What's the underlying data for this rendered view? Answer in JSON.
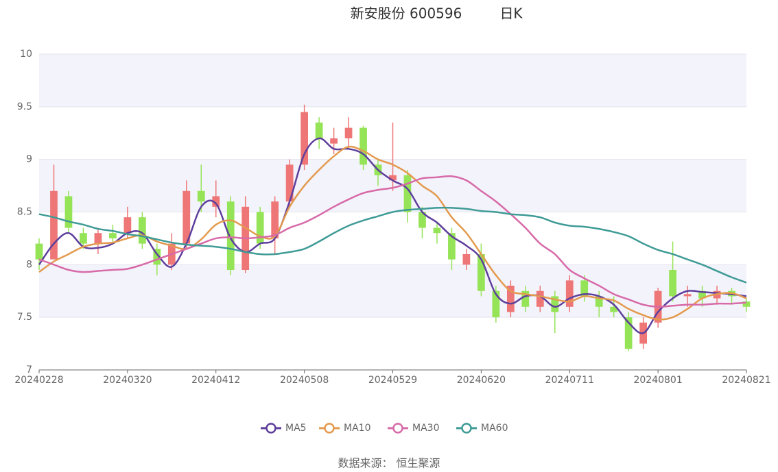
{
  "chart_data": {
    "type": "candlestick",
    "title": "新安股份 600596",
    "subtitle": "日K",
    "source": "数据来源： 恒生聚源",
    "categories": [
      "20240228",
      null,
      null,
      null,
      null,
      null,
      "20240320",
      null,
      null,
      null,
      null,
      null,
      "20240412",
      null,
      null,
      null,
      null,
      null,
      "20240508",
      null,
      null,
      null,
      null,
      null,
      "20240529",
      null,
      null,
      null,
      null,
      null,
      "20240620",
      null,
      null,
      null,
      null,
      null,
      "20240711",
      null,
      null,
      null,
      null,
      null,
      "20240801",
      null,
      null,
      null,
      null,
      null,
      "20240821"
    ],
    "ohlc": [
      [
        8.2,
        8.05,
        7.95,
        8.25
      ],
      [
        8.05,
        8.7,
        8.05,
        8.95
      ],
      [
        8.65,
        8.35,
        8.3,
        8.7
      ],
      [
        8.3,
        8.2,
        8.15,
        8.35
      ],
      [
        8.2,
        8.3,
        8.1,
        8.35
      ],
      [
        8.3,
        8.25,
        8.2,
        8.38
      ],
      [
        8.3,
        8.45,
        8.25,
        8.55
      ],
      [
        8.45,
        8.2,
        8.15,
        8.5
      ],
      [
        8.15,
        8.0,
        7.9,
        8.2
      ],
      [
        8.0,
        8.2,
        7.95,
        8.3
      ],
      [
        8.2,
        8.7,
        8.15,
        8.8
      ],
      [
        8.7,
        8.6,
        8.5,
        8.95
      ],
      [
        8.55,
        8.65,
        8.45,
        8.8
      ],
      [
        8.6,
        7.95,
        7.9,
        8.65
      ],
      [
        7.95,
        8.55,
        7.92,
        8.65
      ],
      [
        8.5,
        8.2,
        8.15,
        8.55
      ],
      [
        8.25,
        8.6,
        8.1,
        8.65
      ],
      [
        8.6,
        8.95,
        8.55,
        9.0
      ],
      [
        8.95,
        9.45,
        8.9,
        9.52
      ],
      [
        9.35,
        9.2,
        9.1,
        9.4
      ],
      [
        9.15,
        9.2,
        9.05,
        9.3
      ],
      [
        9.2,
        9.3,
        9.1,
        9.4
      ],
      [
        9.3,
        8.95,
        8.9,
        9.32
      ],
      [
        8.95,
        8.85,
        8.75,
        9.0
      ],
      [
        8.8,
        8.85,
        8.7,
        9.35
      ],
      [
        8.85,
        8.5,
        8.4,
        8.9
      ],
      [
        8.5,
        8.35,
        8.25,
        8.55
      ],
      [
        8.35,
        8.3,
        8.2,
        8.4
      ],
      [
        8.3,
        8.05,
        7.95,
        8.35
      ],
      [
        8.0,
        8.1,
        7.95,
        8.15
      ],
      [
        8.1,
        7.75,
        7.7,
        8.2
      ],
      [
        7.75,
        7.5,
        7.45,
        7.8
      ],
      [
        7.55,
        7.8,
        7.5,
        7.85
      ],
      [
        7.75,
        7.6,
        7.55,
        7.8
      ],
      [
        7.6,
        7.75,
        7.55,
        7.8
      ],
      [
        7.7,
        7.55,
        7.35,
        7.75
      ],
      [
        7.6,
        7.85,
        7.55,
        7.9
      ],
      [
        7.85,
        7.7,
        7.65,
        7.9
      ],
      [
        7.7,
        7.6,
        7.5,
        7.75
      ],
      [
        7.6,
        7.55,
        7.5,
        7.7
      ],
      [
        7.5,
        7.2,
        7.18,
        7.55
      ],
      [
        7.25,
        7.45,
        7.2,
        7.5
      ],
      [
        7.45,
        7.75,
        7.4,
        7.78
      ],
      [
        7.95,
        7.7,
        7.65,
        8.22
      ],
      [
        7.7,
        7.72,
        7.6,
        7.8
      ],
      [
        7.75,
        7.68,
        7.6,
        7.8
      ],
      [
        7.68,
        7.75,
        7.62,
        7.8
      ],
      [
        7.75,
        7.7,
        7.62,
        7.78
      ],
      [
        7.65,
        7.6,
        7.55,
        7.68
      ]
    ],
    "up_color": "#ee7676",
    "down_color": "#95e356",
    "series": [
      {
        "name": "MA5",
        "color": "#5e3f9c",
        "values": [
          8.0,
          8.2,
          8.3,
          8.17,
          8.16,
          8.2,
          8.3,
          8.3,
          8.1,
          7.98,
          8.2,
          8.55,
          8.58,
          8.25,
          8.12,
          8.2,
          8.25,
          8.6,
          9.05,
          9.2,
          9.1,
          9.1,
          9.05,
          8.9,
          8.8,
          8.72,
          8.5,
          8.4,
          8.27,
          8.18,
          8.05,
          7.72,
          7.63,
          7.7,
          7.7,
          7.6,
          7.68,
          7.72,
          7.7,
          7.62,
          7.45,
          7.35,
          7.55,
          7.68,
          7.75,
          7.74,
          7.73,
          7.72,
          7.7
        ]
      },
      {
        "name": "MA10",
        "color": "#e39a4e",
        "values": [
          7.93,
          8.03,
          8.1,
          8.17,
          8.2,
          8.21,
          8.25,
          8.28,
          8.22,
          8.18,
          8.15,
          8.24,
          8.38,
          8.42,
          8.35,
          8.27,
          8.27,
          8.55,
          8.75,
          8.9,
          9.03,
          9.12,
          9.08,
          9.0,
          8.95,
          8.87,
          8.75,
          8.65,
          8.45,
          8.3,
          8.1,
          7.9,
          7.75,
          7.72,
          7.7,
          7.67,
          7.65,
          7.7,
          7.68,
          7.66,
          7.58,
          7.52,
          7.48,
          7.5,
          7.58,
          7.68,
          7.72,
          7.73,
          7.68
        ]
      },
      {
        "name": "MA30",
        "color": "#d76aa8",
        "values": [
          8.05,
          8.0,
          7.95,
          7.93,
          7.94,
          7.95,
          7.96,
          8.0,
          8.05,
          8.1,
          8.15,
          8.2,
          8.25,
          8.26,
          8.25,
          8.26,
          8.28,
          8.35,
          8.4,
          8.47,
          8.55,
          8.62,
          8.68,
          8.71,
          8.73,
          8.77,
          8.82,
          8.83,
          8.84,
          8.8,
          8.7,
          8.6,
          8.48,
          8.35,
          8.2,
          8.1,
          7.95,
          7.87,
          7.8,
          7.72,
          7.67,
          7.62,
          7.6,
          7.61,
          7.62,
          7.62,
          7.63,
          7.63,
          7.64
        ]
      },
      {
        "name": "MA60",
        "color": "#3f9b96",
        "values": [
          8.48,
          8.45,
          8.41,
          8.38,
          8.34,
          8.32,
          8.29,
          8.27,
          8.24,
          8.21,
          8.19,
          8.18,
          8.17,
          8.15,
          8.12,
          8.1,
          8.1,
          8.12,
          8.15,
          8.22,
          8.3,
          8.37,
          8.42,
          8.46,
          8.5,
          8.52,
          8.53,
          8.54,
          8.54,
          8.53,
          8.51,
          8.5,
          8.48,
          8.47,
          8.45,
          8.4,
          8.37,
          8.36,
          8.34,
          8.31,
          8.27,
          8.2,
          8.14,
          8.1,
          8.05,
          8.0,
          7.94,
          7.88,
          7.83
        ]
      }
    ],
    "ylim": [
      7,
      10
    ],
    "yticks": [
      7,
      7.5,
      8,
      8.5,
      9,
      9.5,
      10
    ],
    "grid": true,
    "split_area": true,
    "legend": "bottom"
  }
}
